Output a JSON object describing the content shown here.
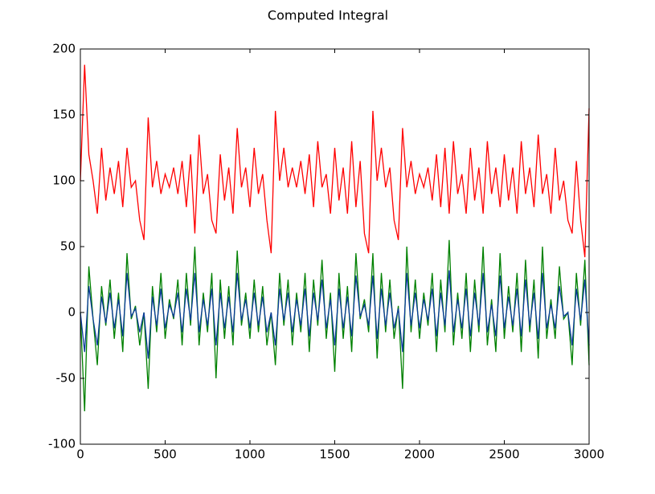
{
  "chart_data": {
    "type": "line",
    "title": "Computed Integral",
    "x": [
      0,
      25,
      50,
      75,
      100,
      125,
      150,
      175,
      200,
      225,
      250,
      275,
      300,
      325,
      350,
      375,
      400,
      425,
      450,
      475,
      500,
      525,
      550,
      575,
      600,
      625,
      650,
      675,
      700,
      725,
      750,
      775,
      800,
      825,
      850,
      875,
      900,
      925,
      950,
      975,
      1000,
      1025,
      1050,
      1075,
      1100,
      1125,
      1150,
      1175,
      1200,
      1225,
      1250,
      1275,
      1300,
      1325,
      1350,
      1375,
      1400,
      1425,
      1450,
      1475,
      1500,
      1525,
      1550,
      1575,
      1600,
      1625,
      1650,
      1675,
      1700,
      1725,
      1750,
      1775,
      1800,
      1825,
      1850,
      1875,
      1900,
      1925,
      1950,
      1975,
      2000,
      2025,
      2050,
      2075,
      2100,
      2125,
      2150,
      2175,
      2200,
      2225,
      2250,
      2275,
      2300,
      2325,
      2350,
      2375,
      2400,
      2425,
      2450,
      2475,
      2500,
      2525,
      2550,
      2575,
      2600,
      2625,
      2650,
      2675,
      2700,
      2725,
      2750,
      2775,
      2800,
      2825,
      2850,
      2875,
      2900,
      2925,
      2950,
      2975,
      3000
    ],
    "series": [
      {
        "color": "#ff0000",
        "values": [
          100,
          188,
          120,
          100,
          75,
          125,
          85,
          110,
          90,
          115,
          80,
          125,
          95,
          100,
          70,
          55,
          148,
          95,
          115,
          90,
          105,
          95,
          110,
          90,
          115,
          80,
          120,
          60,
          135,
          90,
          105,
          70,
          60,
          120,
          85,
          110,
          75,
          140,
          95,
          110,
          80,
          125,
          90,
          105,
          70,
          45,
          153,
          100,
          125,
          95,
          110,
          95,
          115,
          90,
          120,
          80,
          130,
          95,
          105,
          75,
          125,
          85,
          110,
          75,
          130,
          80,
          115,
          60,
          45,
          153,
          100,
          125,
          95,
          110,
          70,
          55,
          140,
          95,
          115,
          90,
          105,
          95,
          110,
          85,
          120,
          80,
          125,
          75,
          130,
          90,
          105,
          75,
          125,
          85,
          110,
          75,
          130,
          90,
          110,
          80,
          120,
          85,
          110,
          75,
          130,
          90,
          110,
          80,
          135,
          90,
          105,
          75,
          125,
          85,
          100,
          70,
          60,
          115,
          70,
          42,
          155
        ]
      },
      {
        "color": "#008000",
        "values": [
          0,
          -75,
          35,
          -5,
          -40,
          20,
          -10,
          25,
          -20,
          15,
          -30,
          45,
          -5,
          5,
          -25,
          0,
          -58,
          20,
          -15,
          30,
          -20,
          10,
          -5,
          25,
          -25,
          30,
          -10,
          50,
          -25,
          15,
          -15,
          30,
          -50,
          25,
          -20,
          20,
          -25,
          47,
          -10,
          15,
          -20,
          25,
          -15,
          20,
          -25,
          0,
          -40,
          30,
          -10,
          25,
          -25,
          15,
          -15,
          30,
          -30,
          25,
          -10,
          40,
          -20,
          15,
          -45,
          30,
          -20,
          20,
          -30,
          45,
          -5,
          10,
          -15,
          45,
          -35,
          30,
          -15,
          25,
          -20,
          5,
          -58,
          50,
          -15,
          25,
          -20,
          15,
          -10,
          30,
          -30,
          25,
          -15,
          55,
          -25,
          15,
          -20,
          30,
          -30,
          25,
          -15,
          50,
          -25,
          10,
          -30,
          45,
          -20,
          20,
          -15,
          30,
          -30,
          40,
          -15,
          25,
          -35,
          50,
          -20,
          10,
          -20,
          35,
          -5,
          0,
          -40,
          30,
          -10,
          40,
          -40
        ]
      },
      {
        "color": "#0a3a9a",
        "values": [
          0,
          -30,
          20,
          -5,
          -25,
          12,
          -8,
          15,
          -12,
          10,
          -18,
          30,
          -3,
          3,
          -15,
          0,
          -35,
          12,
          -10,
          18,
          -12,
          6,
          -3,
          15,
          -15,
          18,
          -6,
          30,
          -15,
          10,
          -10,
          18,
          -25,
          15,
          -12,
          12,
          -15,
          30,
          -6,
          10,
          -12,
          15,
          -10,
          12,
          -15,
          0,
          -25,
          18,
          -6,
          15,
          -15,
          10,
          -10,
          18,
          -18,
          15,
          -6,
          25,
          -12,
          10,
          -25,
          18,
          -12,
          12,
          -18,
          28,
          -3,
          6,
          -10,
          28,
          -20,
          18,
          -10,
          15,
          -12,
          3,
          -30,
          30,
          -10,
          15,
          -12,
          10,
          -6,
          18,
          -18,
          15,
          -10,
          32,
          -15,
          10,
          -12,
          18,
          -18,
          15,
          -10,
          30,
          -15,
          6,
          -18,
          28,
          -12,
          12,
          -10,
          18,
          -18,
          25,
          -10,
          15,
          -20,
          30,
          -12,
          6,
          -12,
          20,
          -3,
          0,
          -25,
          18,
          -6,
          25,
          -25
        ]
      }
    ],
    "xlim": [
      0,
      3000
    ],
    "xticks": [
      0,
      500,
      1000,
      1500,
      2000,
      2500,
      3000
    ],
    "ylim": [
      -100,
      200
    ],
    "yticks": [
      -100,
      -50,
      0,
      50,
      100,
      150,
      200
    ]
  }
}
